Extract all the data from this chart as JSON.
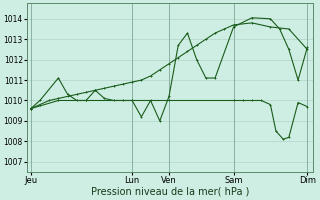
{
  "background_color": "#ceeee4",
  "grid_color": "#b0d4c8",
  "line_color": "#1a5c1a",
  "marker_color": "#1a5c1a",
  "xlabel": "Pression niveau de la mer( hPa )",
  "ylim": [
    1006.5,
    1014.75
  ],
  "yticks": [
    1007,
    1008,
    1009,
    1010,
    1011,
    1012,
    1013,
    1014
  ],
  "x_day_labels": [
    "Jeu",
    "Lun",
    "Ven",
    "Sam",
    "Dim"
  ],
  "x_day_positions": [
    0,
    5.5,
    7.5,
    11,
    15
  ],
  "vline_positions": [
    0,
    5.5,
    7.5,
    11,
    15
  ],
  "series1_x": [
    0,
    0.5,
    1.0,
    1.5,
    2.0,
    2.5,
    3.0,
    3.5,
    4.0,
    4.5,
    5.0,
    5.5,
    6.0,
    6.5,
    7.0,
    7.5,
    8.0,
    8.5,
    9.0,
    9.5,
    10.0,
    10.5,
    11.0,
    12.0,
    13.0,
    14.0,
    15.0
  ],
  "series1_y": [
    1009.6,
    1009.8,
    1010.0,
    1010.1,
    1010.2,
    1010.3,
    1010.4,
    1010.5,
    1010.6,
    1010.7,
    1010.8,
    1010.9,
    1011.0,
    1011.2,
    1011.5,
    1011.8,
    1012.1,
    1012.4,
    1012.7,
    1013.0,
    1013.3,
    1013.5,
    1013.7,
    1013.8,
    1013.6,
    1013.5,
    1012.5
  ],
  "series2_x": [
    0,
    0.5,
    1.5,
    2.0,
    2.5,
    3.0,
    3.5,
    4.0,
    4.5,
    5.0,
    5.5,
    6.0,
    6.5,
    7.0,
    7.5,
    8.0,
    8.5,
    9.0,
    9.5,
    10.0,
    11.0,
    12.0,
    13.0,
    13.5,
    14.0,
    14.5,
    15.0
  ],
  "series2_y": [
    1009.6,
    1010.0,
    1011.1,
    1010.3,
    1010.0,
    1010.0,
    1010.5,
    1010.1,
    1010.0,
    1010.0,
    1010.0,
    1009.2,
    1010.0,
    1009.0,
    1010.2,
    1012.7,
    1013.3,
    1012.0,
    1011.1,
    1011.1,
    1013.6,
    1014.05,
    1014.0,
    1013.5,
    1012.5,
    1011.0,
    1012.6
  ],
  "series3_x": [
    0,
    1.5,
    3.0,
    5.5,
    7.5,
    11.0,
    11.5,
    12.0,
    12.5,
    13.0,
    13.3,
    13.7,
    14.0,
    14.5,
    15.0
  ],
  "series3_y": [
    1009.6,
    1010.0,
    1010.0,
    1010.0,
    1010.0,
    1010.0,
    1010.0,
    1010.0,
    1010.0,
    1009.8,
    1008.5,
    1008.1,
    1008.2,
    1009.9,
    1009.7
  ],
  "xlim": [
    -0.2,
    15.3
  ],
  "figsize": [
    3.2,
    2.0
  ],
  "dpi": 100,
  "ytick_fontsize": 5.5,
  "xtick_fontsize": 6,
  "xlabel_fontsize": 7
}
